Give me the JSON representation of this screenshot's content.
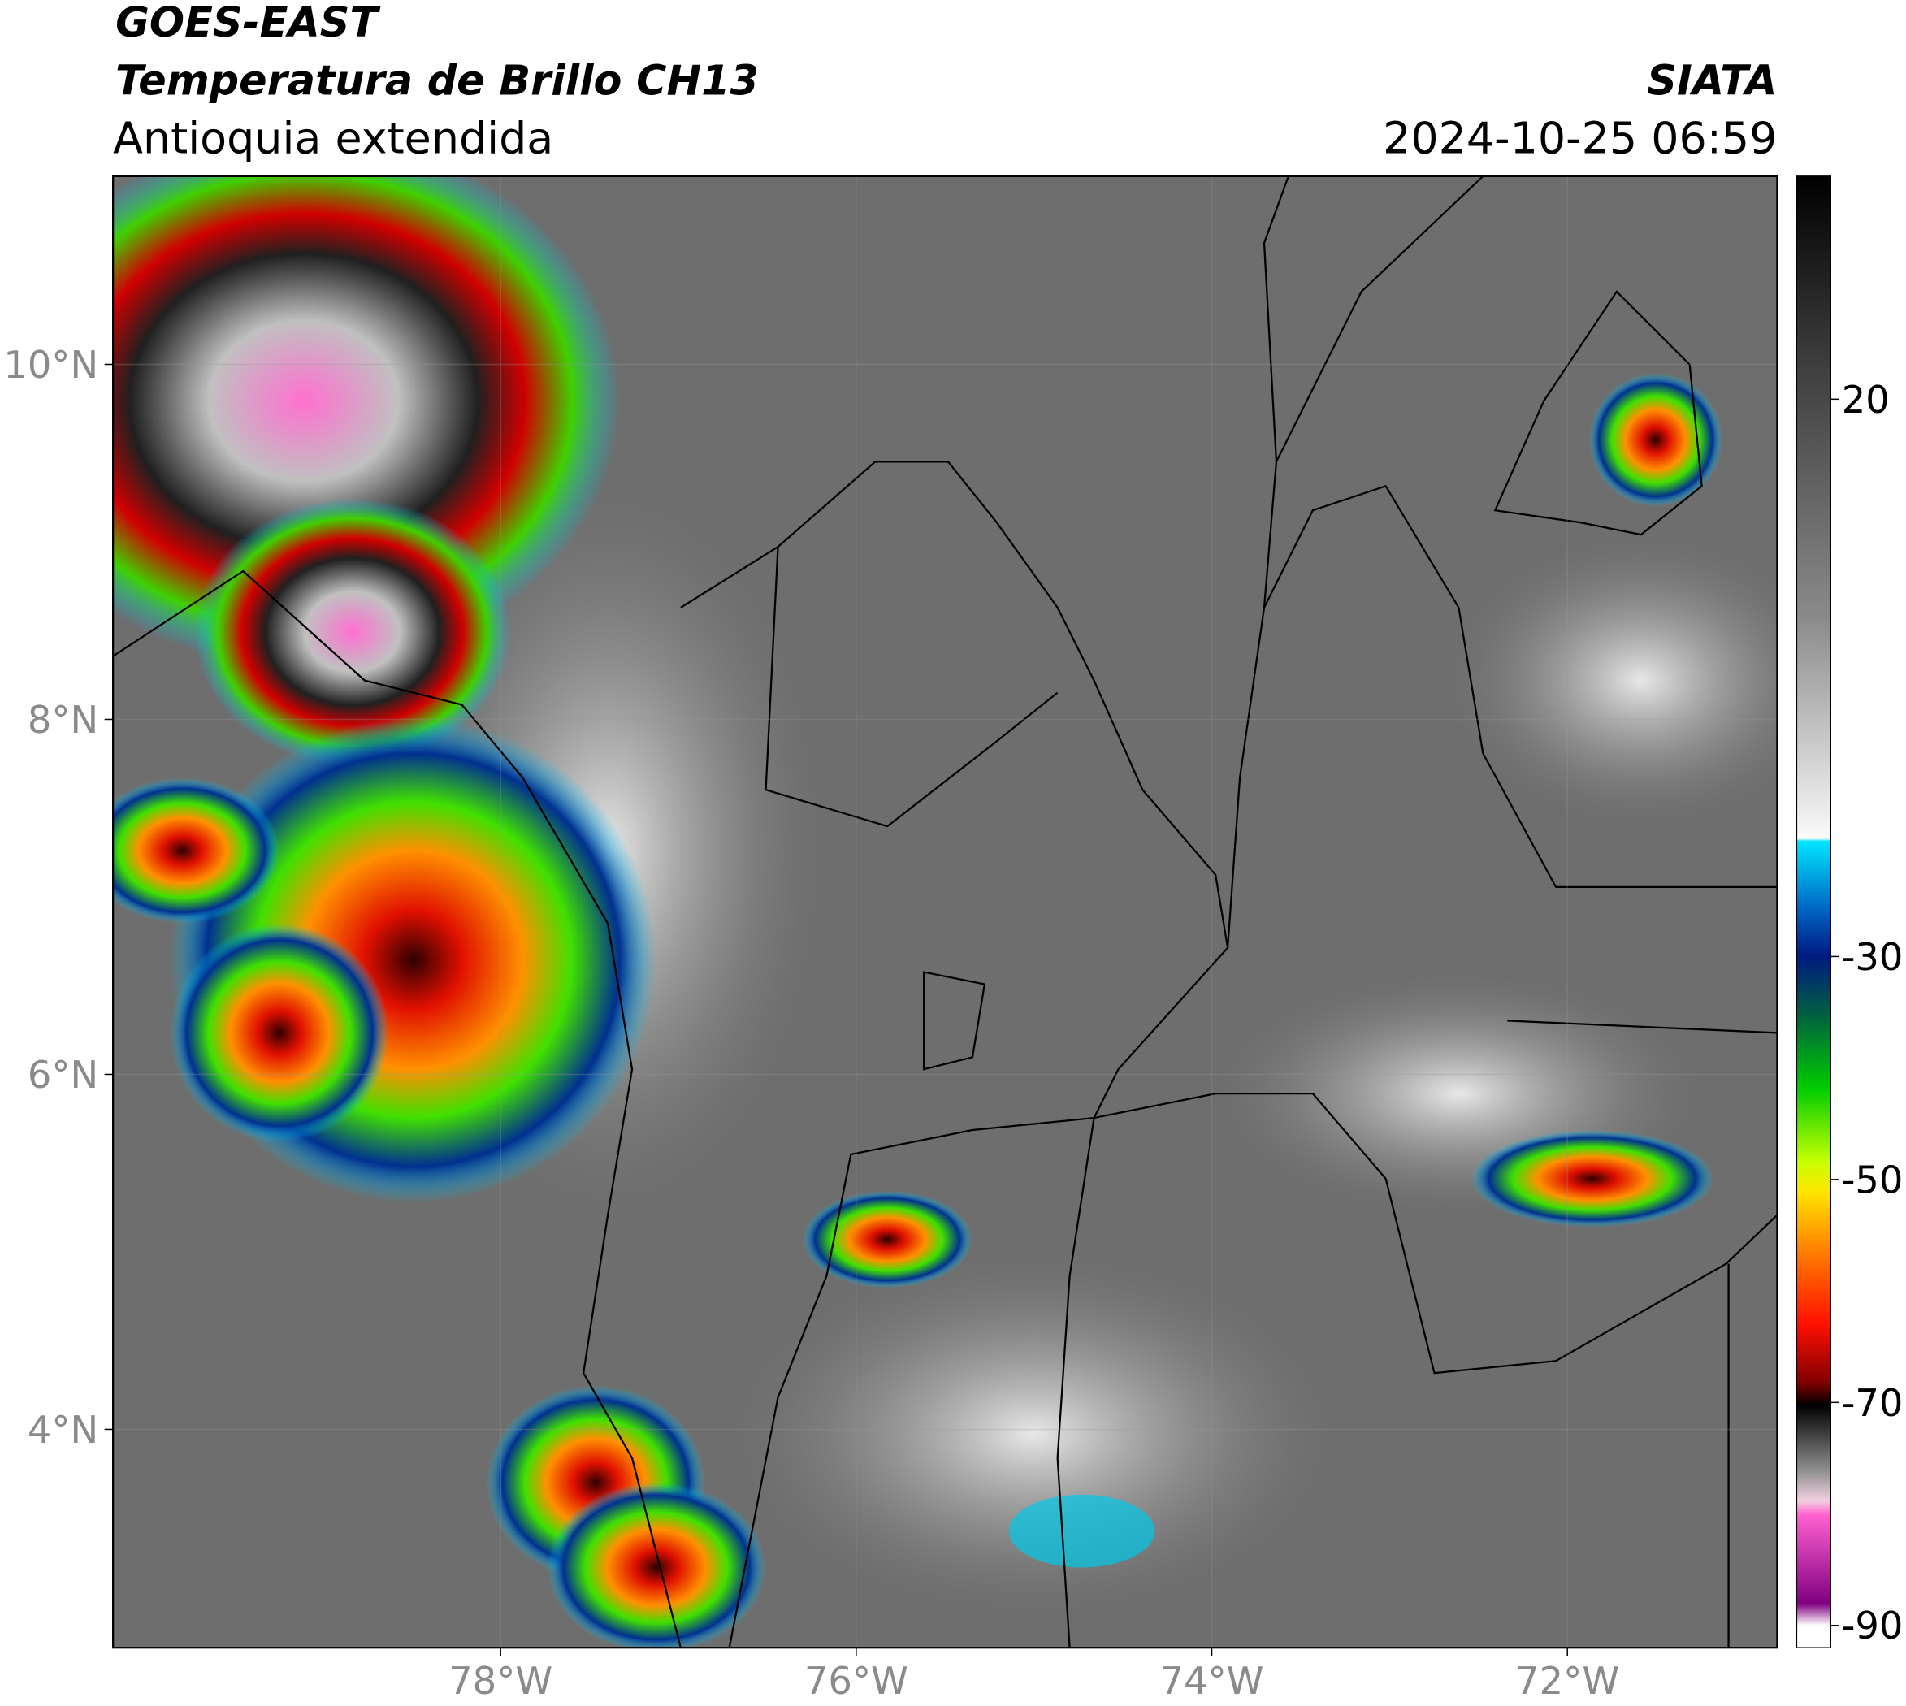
{
  "header": {
    "title": "GOES-EAST",
    "subtitle": "Temperatura de Brillo CH13",
    "region": "Antioquia extendida",
    "source": "SIATA",
    "datetime": "2024-10-25 06:59"
  },
  "map": {
    "xlim": [
      -80.18,
      -70.82
    ],
    "ylim": [
      2.77,
      11.06
    ],
    "xticks": [
      {
        "value": -78,
        "label": "78°W"
      },
      {
        "value": -76,
        "label": "76°W"
      },
      {
        "value": -74,
        "label": "74°W"
      },
      {
        "value": -72,
        "label": "72°W"
      }
    ],
    "yticks": [
      {
        "value": 10,
        "label": "10°N"
      },
      {
        "value": 8,
        "label": "8°N"
      },
      {
        "value": 6,
        "label": "6°N"
      },
      {
        "value": 4,
        "label": "4°N"
      }
    ]
  },
  "colorbar": {
    "lim": [
      -92,
      40
    ],
    "ticks": [
      20,
      -30,
      -50,
      -70,
      -90
    ]
  }
}
